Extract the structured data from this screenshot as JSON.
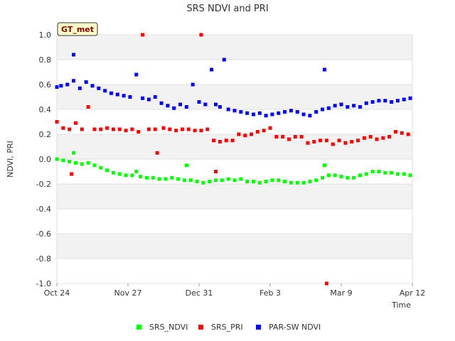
{
  "chart_data": {
    "type": "scatter",
    "title": "SRS NDVI and PRI",
    "badge": "GT_met",
    "xlabel": "Time",
    "ylabel": "NDVI, PRI",
    "x_ticks": [
      {
        "label": "Oct 24",
        "day": 0
      },
      {
        "label": "Nov 27",
        "day": 34
      },
      {
        "label": "Dec 31",
        "day": 68
      },
      {
        "label": "Feb 3",
        "day": 102
      },
      {
        "label": "Mar 9",
        "day": 136
      },
      {
        "label": "Apr 12",
        "day": 170
      }
    ],
    "xlim_days": [
      0,
      170
    ],
    "y_ticks": [
      "1.0",
      "0.8",
      "0.6",
      "0.4",
      "0.2",
      "0.0",
      "-0.2",
      "-0.4",
      "-0.6",
      "-0.8",
      "-1.0"
    ],
    "ylim": [
      -1.0,
      1.0
    ],
    "grid": "horizontal bands",
    "legend_position": "bottom",
    "series": [
      {
        "name": "SRS_NDVI",
        "color": "#00ff00",
        "points": [
          [
            0,
            0.0
          ],
          [
            3,
            -0.01
          ],
          [
            6,
            -0.02
          ],
          [
            8,
            0.05
          ],
          [
            9,
            -0.03
          ],
          [
            12,
            -0.04
          ],
          [
            15,
            -0.03
          ],
          [
            18,
            -0.05
          ],
          [
            21,
            -0.07
          ],
          [
            24,
            -0.09
          ],
          [
            27,
            -0.11
          ],
          [
            30,
            -0.12
          ],
          [
            33,
            -0.13
          ],
          [
            36,
            -0.13
          ],
          [
            38,
            -0.1
          ],
          [
            40,
            -0.14
          ],
          [
            43,
            -0.15
          ],
          [
            46,
            -0.15
          ],
          [
            49,
            -0.16
          ],
          [
            52,
            -0.16
          ],
          [
            55,
            -0.15
          ],
          [
            58,
            -0.16
          ],
          [
            61,
            -0.17
          ],
          [
            62,
            -0.05
          ],
          [
            64,
            -0.17
          ],
          [
            67,
            -0.18
          ],
          [
            70,
            -0.19
          ],
          [
            73,
            -0.18
          ],
          [
            76,
            -0.17
          ],
          [
            79,
            -0.17
          ],
          [
            82,
            -0.16
          ],
          [
            85,
            -0.17
          ],
          [
            88,
            -0.16
          ],
          [
            91,
            -0.18
          ],
          [
            94,
            -0.18
          ],
          [
            97,
            -0.19
          ],
          [
            100,
            -0.18
          ],
          [
            103,
            -0.17
          ],
          [
            106,
            -0.17
          ],
          [
            109,
            -0.18
          ],
          [
            112,
            -0.19
          ],
          [
            115,
            -0.19
          ],
          [
            118,
            -0.19
          ],
          [
            121,
            -0.18
          ],
          [
            124,
            -0.17
          ],
          [
            127,
            -0.15
          ],
          [
            128,
            -0.05
          ],
          [
            130,
            -0.13
          ],
          [
            133,
            -0.13
          ],
          [
            136,
            -0.14
          ],
          [
            139,
            -0.15
          ],
          [
            142,
            -0.15
          ],
          [
            145,
            -0.13
          ],
          [
            148,
            -0.12
          ],
          [
            151,
            -0.1
          ],
          [
            154,
            -0.1
          ],
          [
            157,
            -0.11
          ],
          [
            160,
            -0.11
          ],
          [
            163,
            -0.12
          ],
          [
            166,
            -0.12
          ],
          [
            169,
            -0.13
          ]
        ]
      },
      {
        "name": "SRS_PRI",
        "color": "#ff0000",
        "points": [
          [
            0,
            0.3
          ],
          [
            3,
            0.25
          ],
          [
            6,
            0.24
          ],
          [
            7,
            -0.12
          ],
          [
            9,
            0.29
          ],
          [
            12,
            0.24
          ],
          [
            15,
            0.42
          ],
          [
            18,
            0.24
          ],
          [
            21,
            0.24
          ],
          [
            24,
            0.25
          ],
          [
            27,
            0.24
          ],
          [
            30,
            0.24
          ],
          [
            33,
            0.23
          ],
          [
            36,
            0.24
          ],
          [
            39,
            0.22
          ],
          [
            41,
            1.0
          ],
          [
            44,
            0.24
          ],
          [
            47,
            0.24
          ],
          [
            48,
            0.05
          ],
          [
            51,
            0.25
          ],
          [
            54,
            0.24
          ],
          [
            57,
            0.23
          ],
          [
            60,
            0.24
          ],
          [
            63,
            0.24
          ],
          [
            66,
            0.23
          ],
          [
            69,
            0.23
          ],
          [
            69,
            1.0
          ],
          [
            72,
            0.24
          ],
          [
            75,
            0.15
          ],
          [
            76,
            -0.1
          ],
          [
            78,
            0.14
          ],
          [
            81,
            0.15
          ],
          [
            84,
            0.15
          ],
          [
            87,
            0.2
          ],
          [
            90,
            0.19
          ],
          [
            93,
            0.2
          ],
          [
            96,
            0.22
          ],
          [
            99,
            0.23
          ],
          [
            102,
            0.25
          ],
          [
            105,
            0.18
          ],
          [
            108,
            0.18
          ],
          [
            111,
            0.16
          ],
          [
            114,
            0.18
          ],
          [
            117,
            0.18
          ],
          [
            120,
            0.13
          ],
          [
            123,
            0.14
          ],
          [
            126,
            0.15
          ],
          [
            129,
            0.15
          ],
          [
            129,
            -1.0
          ],
          [
            132,
            0.12
          ],
          [
            135,
            0.15
          ],
          [
            138,
            0.13
          ],
          [
            141,
            0.14
          ],
          [
            144,
            0.15
          ],
          [
            147,
            0.17
          ],
          [
            150,
            0.18
          ],
          [
            153,
            0.16
          ],
          [
            156,
            0.17
          ],
          [
            159,
            0.18
          ],
          [
            162,
            0.22
          ],
          [
            165,
            0.21
          ],
          [
            168,
            0.2
          ]
        ]
      },
      {
        "name": "PAR-SW NDVI",
        "color": "#0000ff",
        "points": [
          [
            0,
            0.58
          ],
          [
            2,
            0.59
          ],
          [
            5,
            0.6
          ],
          [
            8,
            0.84
          ],
          [
            8,
            0.63
          ],
          [
            11,
            0.57
          ],
          [
            14,
            0.62
          ],
          [
            17,
            0.59
          ],
          [
            20,
            0.57
          ],
          [
            23,
            0.55
          ],
          [
            26,
            0.53
          ],
          [
            29,
            0.52
          ],
          [
            32,
            0.51
          ],
          [
            35,
            0.5
          ],
          [
            38,
            0.68
          ],
          [
            41,
            0.49
          ],
          [
            44,
            0.48
          ],
          [
            47,
            0.5
          ],
          [
            50,
            0.45
          ],
          [
            53,
            0.43
          ],
          [
            56,
            0.41
          ],
          [
            59,
            0.44
          ],
          [
            62,
            0.42
          ],
          [
            65,
            0.6
          ],
          [
            68,
            0.46
          ],
          [
            71,
            0.44
          ],
          [
            74,
            0.72
          ],
          [
            76,
            0.44
          ],
          [
            78,
            0.42
          ],
          [
            80,
            0.8
          ],
          [
            82,
            0.4
          ],
          [
            85,
            0.39
          ],
          [
            88,
            0.38
          ],
          [
            91,
            0.37
          ],
          [
            94,
            0.36
          ],
          [
            97,
            0.37
          ],
          [
            100,
            0.35
          ],
          [
            103,
            0.36
          ],
          [
            106,
            0.37
          ],
          [
            109,
            0.38
          ],
          [
            112,
            0.39
          ],
          [
            115,
            0.38
          ],
          [
            118,
            0.36
          ],
          [
            121,
            0.35
          ],
          [
            124,
            0.38
          ],
          [
            127,
            0.4
          ],
          [
            128,
            0.72
          ],
          [
            130,
            0.41
          ],
          [
            133,
            0.43
          ],
          [
            136,
            0.44
          ],
          [
            139,
            0.42
          ],
          [
            142,
            0.43
          ],
          [
            145,
            0.42
          ],
          [
            148,
            0.45
          ],
          [
            151,
            0.46
          ],
          [
            154,
            0.47
          ],
          [
            157,
            0.47
          ],
          [
            160,
            0.46
          ],
          [
            163,
            0.47
          ],
          [
            166,
            0.48
          ],
          [
            169,
            0.49
          ]
        ]
      }
    ]
  }
}
